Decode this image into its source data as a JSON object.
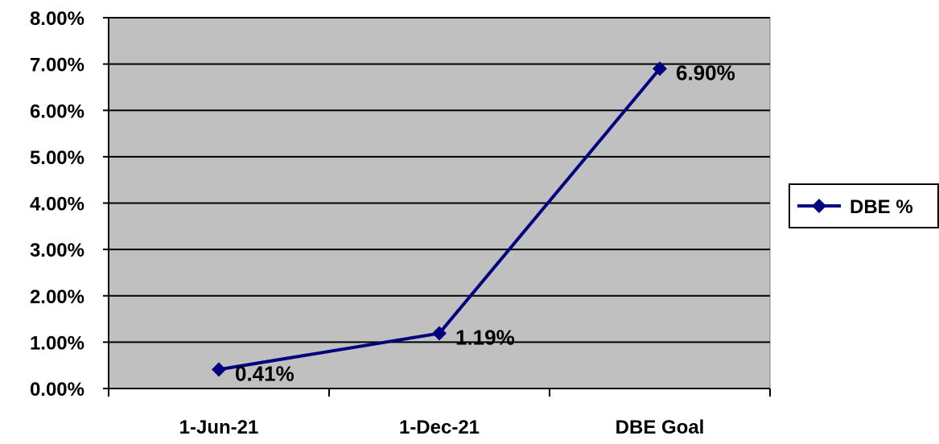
{
  "chart_data": {
    "type": "line",
    "categories": [
      "1-Jun-21",
      "1-Dec-21",
      "DBE Goal"
    ],
    "series": [
      {
        "name": "DBE %",
        "values": [
          0.41,
          1.19,
          6.9
        ],
        "data_labels": [
          "0.41%",
          "1.19%",
          "6.90%"
        ]
      }
    ],
    "yticks": [
      "0.00%",
      "1.00%",
      "2.00%",
      "3.00%",
      "4.00%",
      "5.00%",
      "6.00%",
      "7.00%",
      "8.00%"
    ],
    "ylim": [
      0,
      8
    ],
    "grid": true,
    "legend": "right",
    "colors": {
      "plot_background": "#c0c0c0",
      "series": "#000080",
      "gridline": "#000000"
    }
  }
}
